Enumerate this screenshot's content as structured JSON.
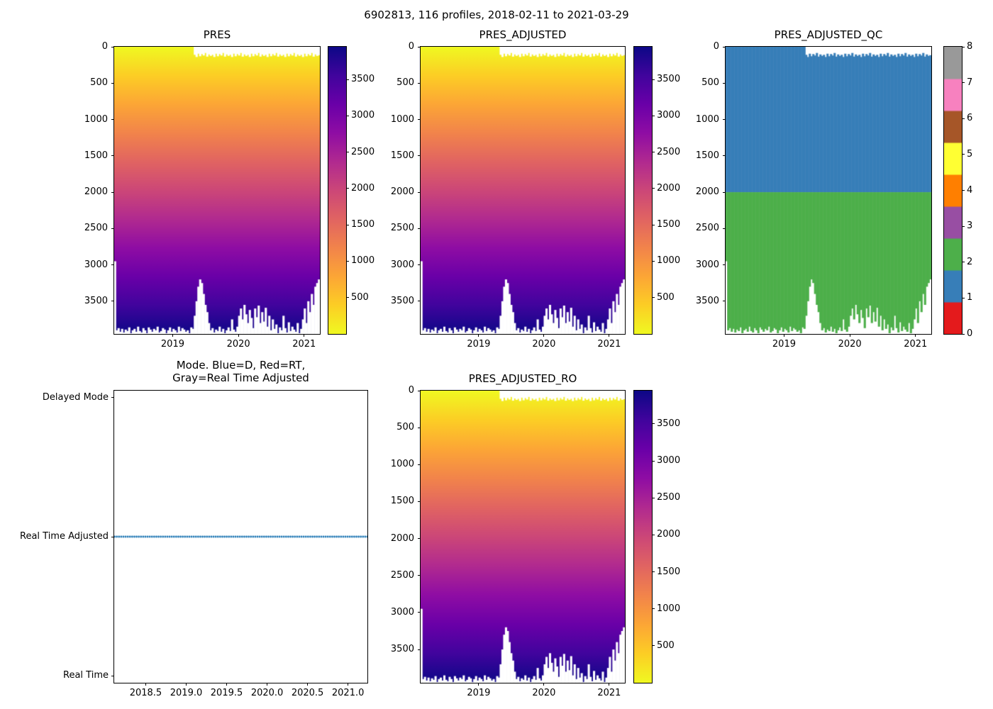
{
  "figure": {
    "title": "6902813, 116 profiles, 2018-02-11 to 2021-03-29"
  },
  "colors": {
    "plasma_r": [
      [
        0.0,
        "#f0f921"
      ],
      [
        0.1,
        "#fcce25"
      ],
      [
        0.2,
        "#fca636"
      ],
      [
        0.3,
        "#f2844b"
      ],
      [
        0.4,
        "#e16462"
      ],
      [
        0.5,
        "#cc4778"
      ],
      [
        0.6,
        "#b12a90"
      ],
      [
        0.7,
        "#8f0da4"
      ],
      [
        0.8,
        "#6a00a8"
      ],
      [
        0.9,
        "#41049d"
      ],
      [
        1.0,
        "#0d0887"
      ]
    ],
    "qc_palette": [
      "#e41a1c",
      "#377eb8",
      "#4daf4a",
      "#984ea3",
      "#ff7f00",
      "#ffff33",
      "#a65628",
      "#f781bf",
      "#999999"
    ],
    "mode_dot": "#1f77b4",
    "axis": "#000000"
  },
  "chart_data": {
    "shared_profiles": {
      "count": 116,
      "x_start": 2018.115,
      "x_end": 2021.24,
      "max_depth": [
        2950,
        3900,
        3870,
        3920,
        3880,
        3930,
        3890,
        3910,
        3860,
        3940,
        3900,
        3880,
        3920,
        3850,
        3910,
        3930,
        3870,
        3900,
        3940,
        3860,
        3890,
        3920,
        3880,
        3900,
        3850,
        3930,
        3910,
        3870,
        3890,
        3940,
        3900,
        3860,
        3920,
        3880,
        3900,
        3930,
        3850,
        3910,
        3870,
        3890,
        3920,
        3900,
        3940,
        3860,
        3880,
        3700,
        3500,
        3300,
        3200,
        3250,
        3400,
        3550,
        3650,
        3800,
        3900,
        3870,
        3930,
        3890,
        3910,
        3850,
        3920,
        3880,
        3940,
        3900,
        3860,
        3910,
        3750,
        3890,
        3920,
        3850,
        3700,
        3600,
        3750,
        3550,
        3680,
        3800,
        3620,
        3730,
        3870,
        3600,
        3720,
        3560,
        3800,
        3650,
        3780,
        3590,
        3850,
        3700,
        3900,
        3750,
        3880,
        3820,
        3940,
        3860,
        3900,
        3700,
        3870,
        3930,
        3790,
        3910,
        3850,
        3890,
        3920,
        3800,
        3940,
        3880,
        3750,
        3600,
        3800,
        3500,
        3650,
        3400,
        3550,
        3300,
        3250,
        3200
      ],
      "surface_gap": [
        0,
        0,
        0,
        0,
        0,
        0,
        0,
        0,
        0,
        0,
        0,
        0,
        0,
        0,
        0,
        0,
        0,
        0,
        0,
        0,
        0,
        0,
        0,
        0,
        0,
        0,
        0,
        0,
        0,
        0,
        0,
        0,
        0,
        0,
        0,
        0,
        0,
        0,
        0,
        0,
        0,
        0,
        0,
        0,
        0,
        110,
        140,
        95,
        130,
        100,
        120,
        85,
        135,
        105,
        125,
        110,
        140,
        95,
        130,
        100,
        120,
        85,
        135,
        105,
        125,
        110,
        140,
        95,
        130,
        100,
        120,
        85,
        135,
        105,
        125,
        110,
        140,
        95,
        130,
        100,
        120,
        85,
        135,
        105,
        125,
        110,
        140,
        95,
        130,
        100,
        120,
        85,
        135,
        105,
        125,
        110,
        140,
        95,
        130,
        100,
        120,
        85,
        135,
        105,
        125,
        110,
        140,
        95,
        130,
        100,
        120,
        85,
        135,
        105,
        125,
        115
      ]
    },
    "charts": [
      {
        "id": "pres",
        "type": "heatmap",
        "title": "PRES",
        "xlim": [
          2018.11,
          2021.24
        ],
        "xticks": [
          2019,
          2020,
          2021
        ],
        "xtick_labels": [
          "2019",
          "2020",
          "2021"
        ],
        "ylim": [
          0,
          3950
        ],
        "y_inverted": true,
        "yticks": [
          0,
          500,
          1000,
          1500,
          2000,
          2500,
          3000,
          3500
        ],
        "colorbar_ticks": [
          500,
          1000,
          1500,
          2000,
          2500,
          3000,
          3500
        ],
        "colormap": "plasma_r"
      },
      {
        "id": "pres_adjusted",
        "type": "heatmap",
        "title": "PRES_ADJUSTED",
        "xlim": [
          2018.11,
          2021.24
        ],
        "xticks": [
          2019,
          2020,
          2021
        ],
        "xtick_labels": [
          "2019",
          "2020",
          "2021"
        ],
        "ylim": [
          0,
          3950
        ],
        "y_inverted": true,
        "yticks": [
          0,
          500,
          1000,
          1500,
          2000,
          2500,
          3000,
          3500
        ],
        "colorbar_ticks": [
          500,
          1000,
          1500,
          2000,
          2500,
          3000,
          3500
        ],
        "colormap": "plasma_r"
      },
      {
        "id": "pres_adjusted_qc",
        "type": "heatmap_qc",
        "title": "PRES_ADJUSTED_QC",
        "xlim": [
          2018.11,
          2021.24
        ],
        "xticks": [
          2019,
          2020,
          2021
        ],
        "xtick_labels": [
          "2019",
          "2020",
          "2021"
        ],
        "ylim": [
          0,
          3950
        ],
        "y_inverted": true,
        "yticks": [
          0,
          500,
          1000,
          1500,
          2000,
          2500,
          3000,
          3500
        ],
        "boundary_depth": 2000,
        "upper_qc": 1,
        "lower_qc": 2,
        "colorbar_ticks": [
          0,
          1,
          2,
          3,
          4,
          5,
          6,
          7,
          8
        ],
        "palette_name": "Set1"
      },
      {
        "id": "mode",
        "type": "scatter",
        "title_lines": [
          "Mode. Blue=D, Red=RT,",
          "Gray=Real Time Adjusted"
        ],
        "xlim": [
          2018.11,
          2021.24
        ],
        "xticks": [
          2018.5,
          2019.0,
          2019.5,
          2020.0,
          2020.5,
          2021.0
        ],
        "xtick_labels": [
          "2018.5",
          "2019.0",
          "2019.5",
          "2020.0",
          "2020.5",
          "2021.0"
        ],
        "ycategories": [
          "Real Time",
          "Real Time Adjusted",
          "Delayed Mode"
        ],
        "series_value": "Real Time Adjusted",
        "dot_color": "#1f77b4"
      },
      {
        "id": "pres_adjusted_ro",
        "type": "heatmap",
        "title": "PRES_ADJUSTED_RO",
        "xlim": [
          2018.11,
          2021.24
        ],
        "xticks": [
          2019,
          2020,
          2021
        ],
        "xtick_labels": [
          "2019",
          "2020",
          "2021"
        ],
        "ylim": [
          0,
          3950
        ],
        "y_inverted": true,
        "yticks": [
          0,
          500,
          1000,
          1500,
          2000,
          2500,
          3000,
          3500
        ],
        "colorbar_ticks": [
          500,
          1000,
          1500,
          2000,
          2500,
          3000,
          3500
        ],
        "colormap": "plasma_r"
      }
    ]
  }
}
